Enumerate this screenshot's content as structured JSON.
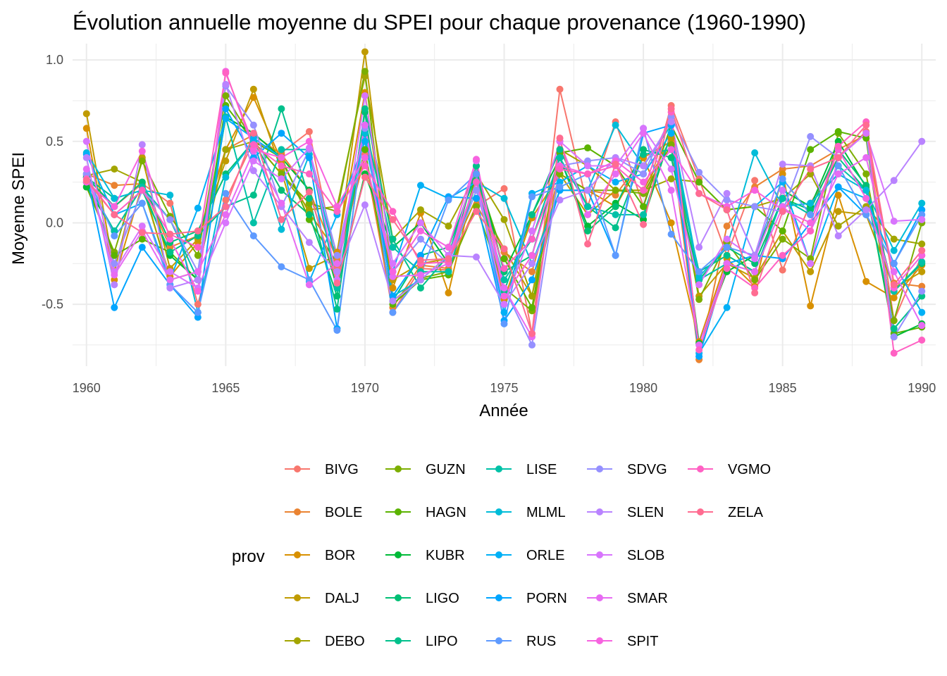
{
  "chart_data": {
    "type": "line",
    "title": "Évolution annuelle moyenne du SPEI pour chaque provenance (1960-1990)",
    "xlabel": "Année",
    "ylabel": "Moyenne SPEI",
    "xlim": [
      1959.5,
      1990.5
    ],
    "ylim": [
      -0.88,
      1.1
    ],
    "x_ticks": [
      1960,
      1965,
      1970,
      1975,
      1980,
      1985,
      1990
    ],
    "x_tick_labels": [
      "1960",
      "1965",
      "1970",
      "1975",
      "1980",
      "1985",
      "1990"
    ],
    "y_ticks": [
      1.0,
      0.5,
      0.0,
      -0.5
    ],
    "y_tick_labels": [
      "1.0",
      "0.5",
      "0.0",
      "-0.5"
    ],
    "grid": true,
    "legend_title": "prov",
    "legend_position": "bottom",
    "x": [
      1960,
      1961,
      1962,
      1963,
      1964,
      1965,
      1966,
      1967,
      1968,
      1969,
      1970,
      1971,
      1972,
      1973,
      1974,
      1975,
      1976,
      1977,
      1978,
      1979,
      1980,
      1981,
      1982,
      1983,
      1984,
      1985,
      1986,
      1987,
      1988,
      1989,
      1990
    ],
    "series": [
      {
        "name": "BIVG",
        "color": "#F8766D",
        "values": [
          0.28,
          0.1,
          0.24,
          0.12,
          -0.5,
          0.14,
          0.5,
          0.43,
          0.56,
          -0.27,
          0.42,
          -0.55,
          -0.28,
          -0.29,
          0.1,
          0.21,
          -0.68,
          0.82,
          0.1,
          0.62,
          0.1,
          0.72,
          0.27,
          -0.2,
          0.26,
          -0.29,
          0.12,
          0.4,
          0.56,
          -0.6,
          -0.2
        ]
      },
      {
        "name": "BOLE",
        "color": "#EA8331",
        "values": [
          0.3,
          0.23,
          0.24,
          -0.15,
          -0.08,
          0.45,
          0.54,
          0.42,
          0.2,
          -0.23,
          0.4,
          -0.52,
          -0.26,
          -0.28,
          0.11,
          -0.18,
          -0.3,
          0.3,
          0.2,
          0.17,
          0.4,
          0.5,
          -0.84,
          -0.02,
          0.22,
          0.33,
          0.35,
          0.45,
          0.54,
          -0.37,
          -0.39
        ]
      },
      {
        "name": "BOR",
        "color": "#D89000",
        "values": [
          0.58,
          -0.35,
          0.23,
          -0.33,
          -0.12,
          0.45,
          0.77,
          0.38,
          0.06,
          -0.18,
          0.8,
          -0.4,
          0.06,
          -0.43,
          0.3,
          -0.47,
          0.03,
          0.3,
          0.2,
          0.1,
          0.4,
          0.0,
          -0.73,
          -0.22,
          -0.39,
          0.3,
          -0.51,
          0.17,
          -0.36,
          -0.46,
          -0.26
        ]
      },
      {
        "name": "DALJ",
        "color": "#C09B00",
        "values": [
          0.67,
          -0.3,
          0.4,
          -0.28,
          -0.1,
          0.38,
          0.82,
          0.32,
          -0.28,
          -0.2,
          1.05,
          -0.35,
          -0.25,
          -0.22,
          0.15,
          -0.16,
          -0.45,
          0.3,
          0.05,
          0.2,
          0.2,
          0.52,
          -0.45,
          -0.25,
          -0.34,
          -0.05,
          -0.3,
          0.07,
          0.05,
          -0.4,
          -0.3
        ]
      },
      {
        "name": "DEBO",
        "color": "#A3A500",
        "values": [
          0.29,
          0.33,
          0.25,
          -0.35,
          -0.3,
          0.45,
          0.5,
          0.3,
          0.08,
          0.1,
          0.9,
          -0.1,
          0.08,
          -0.02,
          0.3,
          0.02,
          -0.45,
          0.45,
          0.35,
          0.2,
          0.2,
          0.27,
          0.25,
          0.08,
          0.1,
          0.15,
          0.3,
          -0.02,
          0.1,
          -0.1,
          -0.13
        ]
      },
      {
        "name": "GUZN",
        "color": "#7CAE00",
        "values": [
          0.22,
          -0.18,
          0.38,
          0.04,
          -0.2,
          0.78,
          0.5,
          0.3,
          0.12,
          0.07,
          0.93,
          -0.48,
          -0.34,
          -0.3,
          0.1,
          -0.4,
          -0.54,
          0.3,
          0.2,
          0.2,
          0.18,
          0.48,
          -0.47,
          -0.12,
          -0.35,
          -0.1,
          -0.22,
          0.55,
          0.3,
          -0.6,
          0.0
        ]
      },
      {
        "name": "HAGN",
        "color": "#5BB300",
        "values": [
          0.25,
          -0.2,
          -0.1,
          -0.18,
          -0.35,
          0.72,
          0.5,
          0.4,
          0.02,
          -0.25,
          0.45,
          -0.5,
          -0.35,
          -0.32,
          0.3,
          -0.22,
          -0.52,
          0.43,
          0.46,
          0.35,
          0.1,
          0.6,
          0.25,
          0.08,
          0.1,
          -0.05,
          0.45,
          0.56,
          0.52,
          -0.68,
          -0.64
        ]
      },
      {
        "name": "KUBR",
        "color": "#00BA38",
        "values": [
          0.22,
          -0.05,
          0.22,
          -0.2,
          -0.35,
          0.65,
          0.55,
          0.4,
          0.2,
          -0.4,
          0.3,
          -0.15,
          0.0,
          -0.25,
          0.35,
          -0.3,
          0.05,
          0.4,
          -0.02,
          0.12,
          0.02,
          0.55,
          -0.74,
          -0.3,
          -0.2,
          0.2,
          0.1,
          0.5,
          0.22,
          -0.7,
          -0.62
        ]
      },
      {
        "name": "LIGO",
        "color": "#00BF74",
        "values": [
          0.28,
          0.1,
          0.25,
          -0.12,
          -0.05,
          0.3,
          0.5,
          0.2,
          0.05,
          -0.45,
          0.68,
          -0.48,
          -0.2,
          -0.15,
          0.3,
          -0.3,
          -0.2,
          0.4,
          -0.05,
          0.1,
          0.45,
          0.4,
          -0.35,
          -0.15,
          -0.25,
          0.15,
          0.08,
          0.45,
          0.23,
          -0.42,
          -0.25
        ]
      },
      {
        "name": "LIPO",
        "color": "#00C08B",
        "values": [
          0.28,
          0.15,
          0.2,
          -0.18,
          -0.08,
          0.1,
          0.17,
          0.7,
          0.15,
          -0.53,
          0.7,
          -0.1,
          -0.4,
          -0.2,
          0.35,
          -0.42,
          0.05,
          0.45,
          0.1,
          -0.03,
          0.42,
          0.45,
          -0.3,
          -0.2,
          -0.3,
          0.15,
          0.05,
          0.4,
          0.2,
          -0.65,
          -0.45
        ]
      },
      {
        "name": "LISE",
        "color": "#00C1A7",
        "values": [
          0.25,
          -0.05,
          0.22,
          0.02,
          -0.35,
          0.65,
          0.0,
          0.45,
          0.45,
          -0.4,
          0.6,
          -0.15,
          -0.3,
          -0.3,
          0.25,
          -0.35,
          -0.1,
          0.4,
          0.1,
          0.05,
          0.05,
          0.55,
          -0.35,
          -0.25,
          -0.3,
          0.15,
          0.05,
          0.35,
          0.2,
          -0.42,
          -0.24
        ]
      },
      {
        "name": "MLML",
        "color": "#00BCD8",
        "values": [
          0.43,
          0.15,
          0.2,
          0.17,
          -0.55,
          0.28,
          0.5,
          -0.04,
          0.42,
          -0.25,
          0.55,
          -0.45,
          -0.35,
          -0.2,
          0.25,
          0.15,
          -0.25,
          0.2,
          0.2,
          0.6,
          0.35,
          0.6,
          -0.33,
          -0.15,
          0.43,
          0.1,
          0.12,
          0.3,
          0.2,
          -0.17,
          0.12
        ]
      },
      {
        "name": "ORLE",
        "color": "#00B0F6",
        "values": [
          0.42,
          0.05,
          0.12,
          -0.35,
          0.09,
          0.64,
          0.52,
          0.4,
          -0.36,
          0.05,
          0.5,
          -0.3,
          0.23,
          0.15,
          0.25,
          -0.55,
          0.18,
          0.25,
          0.35,
          0.25,
          0.3,
          0.55,
          -0.8,
          -0.52,
          0.1,
          0.25,
          -0.25,
          0.22,
          0.15,
          -0.25,
          -0.55
        ]
      },
      {
        "name": "PORN",
        "color": "#00A5FF",
        "values": [
          0.3,
          -0.52,
          -0.15,
          -0.38,
          -0.58,
          0.7,
          0.4,
          0.55,
          0.4,
          -0.65,
          0.6,
          -0.45,
          -0.2,
          0.16,
          0.15,
          -0.6,
          -0.35,
          0.2,
          0.2,
          -0.2,
          0.55,
          0.6,
          -0.82,
          -0.25,
          -0.2,
          -0.22,
          0.0,
          0.22,
          0.05,
          -0.25,
          0.08
        ]
      },
      {
        "name": "RUS",
        "color": "#5E9AFF",
        "values": [
          0.3,
          -0.08,
          0.12,
          -0.38,
          -0.55,
          0.18,
          -0.08,
          -0.27,
          -0.35,
          -0.66,
          0.6,
          -0.55,
          -0.32,
          0.14,
          0.3,
          -0.62,
          0.16,
          0.22,
          0.3,
          -0.2,
          0.58,
          -0.07,
          -0.3,
          -0.15,
          -0.2,
          0.27,
          0.05,
          0.35,
          0.05,
          -0.25,
          0.05
        ]
      },
      {
        "name": "SDVG",
        "color": "#9590FF",
        "values": [
          0.3,
          -0.25,
          0.2,
          0.02,
          -0.3,
          0.84,
          0.6,
          0.1,
          0.45,
          -0.2,
          0.58,
          -0.3,
          -0.1,
          -0.25,
          0.2,
          -0.4,
          -0.75,
          0.35,
          0.38,
          0.4,
          0.3,
          0.65,
          0.31,
          0.14,
          0.1,
          0.07,
          0.53,
          0.4,
          0.55,
          -0.7,
          -0.42
        ]
      },
      {
        "name": "SLEN",
        "color": "#B983FF",
        "values": [
          0.4,
          -0.38,
          0.48,
          -0.4,
          -0.35,
          0.85,
          0.32,
          0.1,
          -0.12,
          -0.3,
          0.11,
          -0.48,
          -0.35,
          -0.2,
          -0.21,
          -0.5,
          -0.25,
          0.14,
          0.2,
          0.4,
          0.35,
          0.62,
          -0.15,
          0.18,
          -0.2,
          0.36,
          0.35,
          -0.08,
          0.08,
          0.26,
          0.5
        ]
      },
      {
        "name": "SLOB",
        "color": "#D874FD",
        "values": [
          0.5,
          -0.3,
          -0.02,
          -0.3,
          -0.4,
          0.0,
          0.38,
          0.27,
          0.46,
          -0.35,
          0.78,
          -0.25,
          0.0,
          -0.2,
          0.25,
          -0.5,
          -0.05,
          0.5,
          0.35,
          0.35,
          0.58,
          0.33,
          -0.38,
          -0.1,
          -0.22,
          0.2,
          -0.25,
          0.4,
          0.55,
          0.01,
          0.02
        ]
      },
      {
        "name": "SMAR",
        "color": "#E76BF3",
        "values": [
          0.33,
          -0.32,
          -0.05,
          -0.35,
          -0.3,
          0.05,
          0.44,
          0.12,
          -0.38,
          -0.25,
          0.6,
          -0.33,
          -0.32,
          -0.25,
          0.38,
          -0.4,
          -0.7,
          0.5,
          0.05,
          0.3,
          0.55,
          0.2,
          -0.75,
          -0.25,
          -0.3,
          0.1,
          -0.05,
          0.3,
          0.4,
          -0.3,
          -0.63
        ]
      },
      {
        "name": "SPIT",
        "color": "#F763E0",
        "values": [
          0.25,
          0.1,
          0.44,
          -0.1,
          -0.42,
          0.93,
          0.45,
          0.4,
          0.5,
          0.1,
          0.4,
          -0.3,
          -0.05,
          -0.15,
          0.39,
          -0.45,
          -0.2,
          0.35,
          0.3,
          0.38,
          0.25,
          0.45,
          0.18,
          0.1,
          0.2,
          0.08,
          0.0,
          0.45,
          0.15,
          -0.4,
          -0.2
        ]
      },
      {
        "name": "VGMO",
        "color": "#FF61C3",
        "values": [
          0.27,
          0.05,
          0.2,
          -0.07,
          -0.15,
          0.92,
          0.48,
          0.35,
          0.3,
          0.07,
          0.35,
          0.07,
          -0.25,
          -0.24,
          0.25,
          -0.28,
          -0.1,
          0.33,
          0.3,
          0.35,
          0.2,
          0.68,
          -0.78,
          -0.28,
          -0.4,
          -0.2,
          -0.05,
          0.47,
          0.62,
          -0.8,
          -0.72
        ]
      },
      {
        "name": "ZELA",
        "color": "#FF6C91",
        "values": [
          0.26,
          0.05,
          -0.06,
          -0.07,
          -0.05,
          0.1,
          0.55,
          0.02,
          0.19,
          -0.37,
          0.28,
          0.02,
          -0.23,
          -0.22,
          0.07,
          -0.16,
          -0.68,
          0.52,
          -0.13,
          0.36,
          -0.01,
          0.7,
          0.18,
          0.08,
          -0.43,
          0.07,
          0.33,
          0.4,
          0.6,
          -0.38,
          -0.17
        ]
      }
    ]
  }
}
